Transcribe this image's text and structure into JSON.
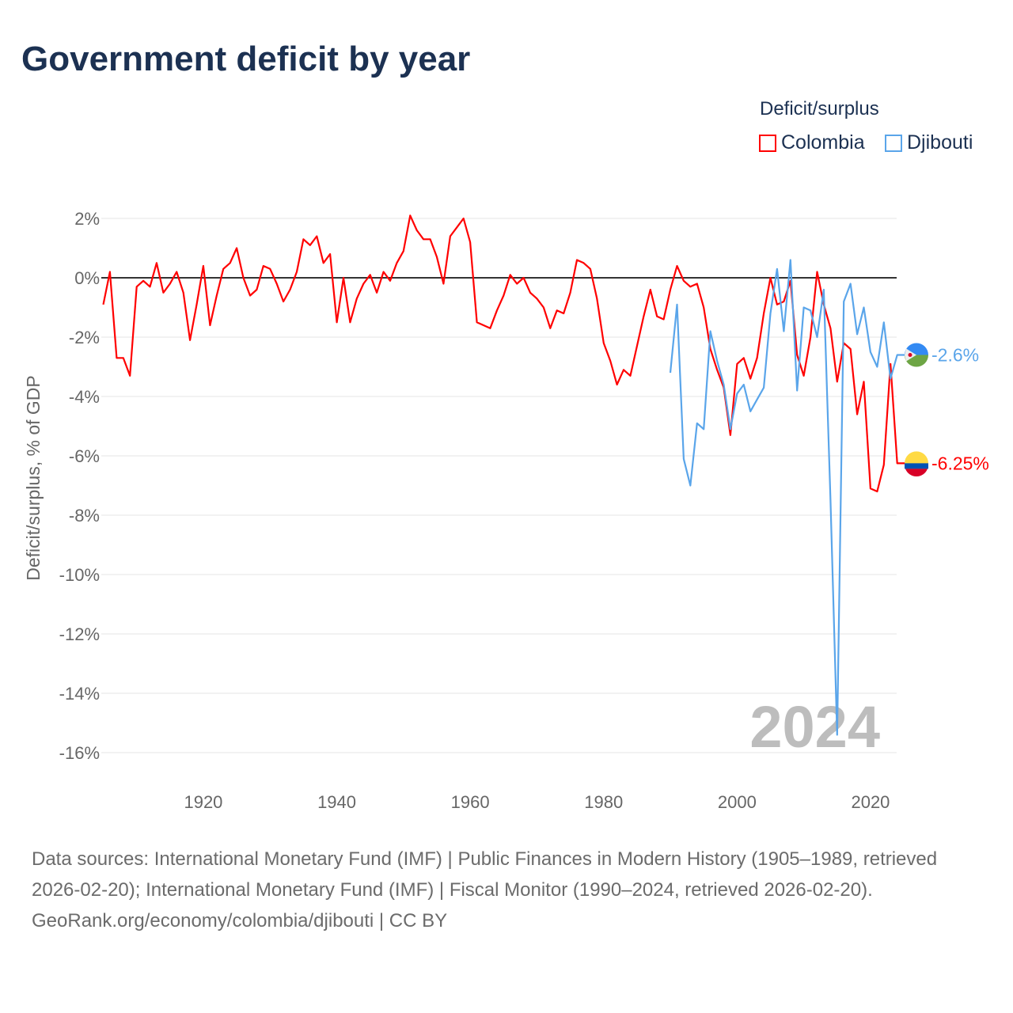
{
  "title": "Government deficit by year",
  "legend": {
    "title": "Deficit/surplus",
    "items": [
      {
        "name": "Colombia",
        "color": "#ff0000"
      },
      {
        "name": "Djibouti",
        "color": "#5aa5ea"
      }
    ]
  },
  "footer": {
    "sources": "Data sources: International Monetary Fund (IMF) | Public Finances in Modern History (1905–1989, retrieved 2026-02-20); International Monetary Fund (IMF) | Fiscal Monitor (1990–2024, retrieved 2026-02-20).",
    "credit": "GeoRank.org/economy/colombia/djibouti | CC BY"
  },
  "chart_data": {
    "type": "line",
    "title": "Government deficit by year",
    "ylabel": "Deficit/surplus, % of GDP",
    "xlabel": "",
    "xlim": [
      1905,
      2024
    ],
    "ylim": [
      -17,
      2.5
    ],
    "yticks": [
      2,
      0,
      -2,
      -4,
      -6,
      -8,
      -10,
      -12,
      -14,
      -16
    ],
    "ytick_labels": [
      "2%",
      "0%",
      "-2%",
      "-4%",
      "-6%",
      "-8%",
      "-10%",
      "-12%",
      "-14%",
      "-16%"
    ],
    "xticks": [
      1920,
      1940,
      1960,
      1980,
      2000,
      2020
    ],
    "xtick_labels": [
      "1920",
      "1940",
      "1960",
      "1980",
      "2000",
      "2020"
    ],
    "watermark": "2024",
    "legend_position": "top-right",
    "series": [
      {
        "name": "Colombia",
        "color": "#ff0000",
        "end_label": "-6.25%",
        "start_year": 1905,
        "values": [
          -0.9,
          0.2,
          -2.7,
          -2.7,
          -3.3,
          -0.3,
          -0.1,
          -0.3,
          0.5,
          -0.5,
          -0.2,
          0.2,
          -0.5,
          -2.1,
          -0.9,
          0.4,
          -1.6,
          -0.6,
          0.3,
          0.5,
          1.0,
          0.0,
          -0.6,
          -0.4,
          0.4,
          0.3,
          -0.2,
          -0.8,
          -0.4,
          0.2,
          1.3,
          1.1,
          1.4,
          0.5,
          0.8,
          -1.5,
          0.0,
          -1.5,
          -0.7,
          -0.2,
          0.1,
          -0.5,
          0.2,
          -0.1,
          0.5,
          0.9,
          2.1,
          1.6,
          1.3,
          1.3,
          0.7,
          -0.2,
          1.4,
          1.7,
          2.0,
          1.2,
          -1.5,
          -1.6,
          -1.7,
          -1.1,
          -0.6,
          0.1,
          -0.2,
          0.0,
          -0.5,
          -0.7,
          -1.0,
          -1.7,
          -1.1,
          -1.2,
          -0.5,
          0.6,
          0.5,
          0.3,
          -0.7,
          -2.2,
          -2.8,
          -3.6,
          -3.1,
          -3.3,
          -2.3,
          -1.3,
          -0.4,
          -1.3,
          -1.4,
          -0.4,
          0.4,
          -0.1,
          -0.3,
          -0.2,
          -1.0,
          -2.4,
          -3.1,
          -3.7,
          -5.3,
          -2.9,
          -2.7,
          -3.4,
          -2.7,
          -1.2,
          0.0,
          -0.9,
          -0.8,
          -0.1,
          -2.6,
          -3.3,
          -2.0,
          0.2,
          -0.9,
          -1.7,
          -3.5,
          -2.2,
          -2.4,
          -4.6,
          -3.5,
          -7.1,
          -7.2,
          -6.3,
          -2.9,
          -6.25
        ]
      },
      {
        "name": "Djibouti",
        "color": "#5aa5ea",
        "end_label": "-2.6%",
        "start_year": 1990,
        "values": [
          -3.2,
          -0.9,
          -6.1,
          -7.0,
          -4.9,
          -5.1,
          -1.8,
          -2.8,
          -3.6,
          -5.1,
          -3.9,
          -3.6,
          -4.5,
          -4.1,
          -3.7,
          -1.2,
          0.3,
          -1.8,
          0.6,
          -3.8,
          -1.0,
          -1.1,
          -2.0,
          -0.4,
          -7.5,
          -15.4,
          -0.8,
          -0.2,
          -1.9,
          -1.0,
          -2.5,
          -3.0,
          -1.5,
          -3.4,
          -2.6
        ]
      }
    ]
  }
}
